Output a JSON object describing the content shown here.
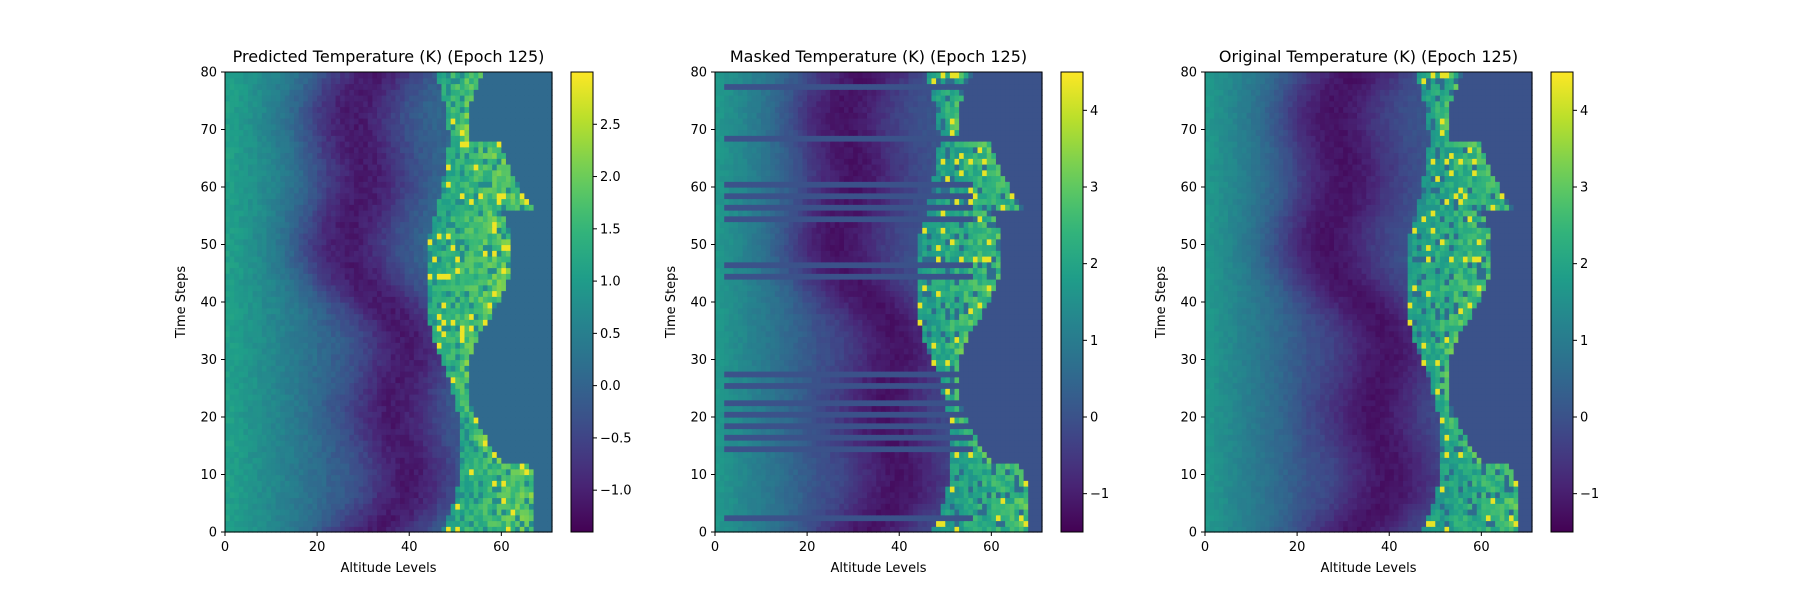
{
  "chart_data": [
    {
      "type": "heatmap",
      "title": "Predicted Temperature (K) (Epoch 125)",
      "xlabel": "Altitude Levels",
      "ylabel": "Time Steps",
      "xlim": [
        0,
        71
      ],
      "ylim": [
        0,
        80
      ],
      "xticks": [
        "0",
        "20",
        "40",
        "60"
      ],
      "yticks": [
        "0",
        "10",
        "20",
        "30",
        "40",
        "50",
        "60",
        "70",
        "80"
      ],
      "colormap": "viridis",
      "colorbar": {
        "min": -1.4,
        "max": 3.0,
        "ticks": [
          "−1.0",
          "−0.5",
          "0.0",
          "0.5",
          "1.0",
          "1.5",
          "2.0",
          "2.5"
        ],
        "tick_values": [
          -1.0,
          -0.5,
          0.0,
          0.5,
          1.0,
          1.5,
          2.0,
          2.5
        ]
      },
      "mask_rows": [],
      "field": {
        "left_value": 1.0,
        "trough_value": -1.1,
        "hot_value": 2.4,
        "hot_edge_value": 2.9,
        "background_value": 0.1,
        "active_extent_max": 67
      }
    },
    {
      "type": "heatmap",
      "title": "Masked Temperature (K) (Epoch 125)",
      "xlabel": "Altitude Levels",
      "ylabel": "Time Steps",
      "xlim": [
        0,
        71
      ],
      "ylim": [
        0,
        80
      ],
      "xticks": [
        "0",
        "20",
        "40",
        "60"
      ],
      "yticks": [
        "0",
        "10",
        "20",
        "30",
        "40",
        "50",
        "60",
        "70",
        "80"
      ],
      "colormap": "viridis",
      "colorbar": {
        "min": -1.5,
        "max": 4.5,
        "ticks": [
          "−1",
          "0",
          "1",
          "2",
          "3",
          "4"
        ],
        "tick_values": [
          -1,
          0,
          1,
          2,
          3,
          4
        ]
      },
      "mask_rows": [
        2,
        14,
        16,
        18,
        20,
        22,
        25,
        27,
        44,
        46,
        54,
        56,
        58,
        60,
        68,
        77
      ],
      "field": {
        "left_value": 1.6,
        "trough_value": -1.2,
        "hot_value": 3.4,
        "hot_edge_value": 4.3,
        "background_value": 0.0,
        "active_extent_max": 68
      }
    },
    {
      "type": "heatmap",
      "title": "Original Temperature (K) (Epoch 125)",
      "xlabel": "Altitude Levels",
      "ylabel": "Time Steps",
      "xlim": [
        0,
        71
      ],
      "ylim": [
        0,
        80
      ],
      "xticks": [
        "0",
        "20",
        "40",
        "60"
      ],
      "yticks": [
        "0",
        "10",
        "20",
        "30",
        "40",
        "50",
        "60",
        "70",
        "80"
      ],
      "colormap": "viridis",
      "colorbar": {
        "min": -1.5,
        "max": 4.5,
        "ticks": [
          "−1",
          "0",
          "1",
          "2",
          "3",
          "4"
        ],
        "tick_values": [
          -1,
          0,
          1,
          2,
          3,
          4
        ]
      },
      "mask_rows": [],
      "field": {
        "left_value": 1.6,
        "trough_value": -1.2,
        "hot_value": 3.4,
        "hot_edge_value": 4.3,
        "background_value": 0.0,
        "active_extent_max": 68
      }
    }
  ]
}
